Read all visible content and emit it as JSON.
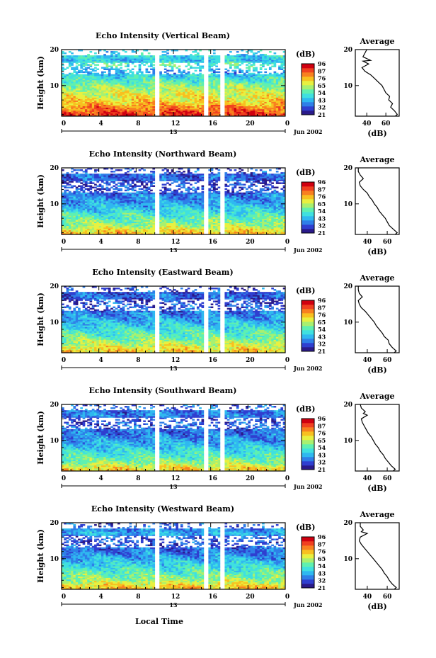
{
  "figure": {
    "local_time_label": "Local Time"
  },
  "colorbar": {
    "unit_label": "(dB)",
    "ticks": [
      "96",
      "87",
      "76",
      "65",
      "54",
      "43",
      "32",
      "21"
    ],
    "colors": [
      "#2a1a8a",
      "#2f3fd0",
      "#2f7fe8",
      "#2fb8f0",
      "#3fe0e0",
      "#5ff0b0",
      "#a8f070",
      "#e8f040",
      "#f8c020",
      "#f88020",
      "#f04020",
      "#d00010"
    ]
  },
  "chart_data": [
    {
      "type": "heatmap",
      "title": "Echo Intensity (Vertical Beam)",
      "ylabel": "Height (km)",
      "x_ticks": [
        "0",
        "4",
        "8",
        "12",
        "16",
        "20",
        "0"
      ],
      "y_ticks": [
        "20",
        "10"
      ],
      "x_range": [
        0,
        24
      ],
      "y_range": [
        1.5,
        20
      ],
      "date_label": "Jun 2002",
      "date_center_tick": "13",
      "data_gaps_hours": [
        [
          10.0,
          10.6
        ],
        [
          15.3,
          15.8
        ],
        [
          17.0,
          17.5
        ]
      ],
      "color_range_db": [
        21,
        96
      ],
      "intensity_profile_db": [
        [
          2,
          88
        ],
        [
          4,
          80
        ],
        [
          6,
          70
        ],
        [
          8,
          66
        ],
        [
          10,
          60
        ],
        [
          12,
          50
        ],
        [
          14,
          40
        ],
        [
          16,
          55
        ],
        [
          17,
          45
        ],
        [
          18,
          48
        ],
        [
          20,
          45
        ]
      ],
      "average": {
        "title": "Average",
        "xlabel": "(dB)",
        "x_ticks": [
          "40",
          "60"
        ],
        "y_ticks": [
          "20",
          "10"
        ],
        "x_range": [
          28,
          74
        ],
        "y_range": [
          1.5,
          20
        ],
        "profile": [
          [
            1.5,
            70
          ],
          [
            2,
            72
          ],
          [
            3,
            69
          ],
          [
            4,
            65
          ],
          [
            5,
            67
          ],
          [
            6,
            63
          ],
          [
            7,
            64
          ],
          [
            8,
            60
          ],
          [
            9,
            58
          ],
          [
            10,
            56
          ],
          [
            11,
            52
          ],
          [
            12,
            48
          ],
          [
            13,
            44
          ],
          [
            14,
            38
          ],
          [
            15,
            35
          ],
          [
            16,
            42
          ],
          [
            16.8,
            36
          ],
          [
            17,
            44
          ],
          [
            18,
            36
          ],
          [
            19,
            38
          ],
          [
            20,
            40
          ]
        ]
      }
    },
    {
      "type": "heatmap",
      "title": "Echo Intensity (Northward Beam)",
      "ylabel": "Height (km)",
      "x_ticks": [
        "0",
        "4",
        "8",
        "12",
        "16",
        "20",
        "0"
      ],
      "y_ticks": [
        "20",
        "10"
      ],
      "x_range": [
        0,
        24
      ],
      "y_range": [
        1.5,
        20
      ],
      "date_label": "Jun 2002",
      "date_center_tick": "13",
      "data_gaps_hours": [
        [
          10.0,
          10.6
        ],
        [
          15.3,
          15.8
        ],
        [
          17.0,
          17.5
        ]
      ],
      "color_range_db": [
        21,
        96
      ],
      "intensity_profile_db": [
        [
          2,
          74
        ],
        [
          4,
          62
        ],
        [
          6,
          55
        ],
        [
          8,
          48
        ],
        [
          10,
          42
        ],
        [
          12,
          38
        ],
        [
          14,
          32
        ],
        [
          16,
          30
        ],
        [
          17,
          35
        ],
        [
          18,
          34
        ],
        [
          20,
          30
        ]
      ],
      "average": {
        "title": "Average",
        "xlabel": "(dB)",
        "x_ticks": [
          "40",
          "60"
        ],
        "y_ticks": [
          "20",
          "10"
        ],
        "x_range": [
          28,
          72
        ],
        "y_range": [
          1.5,
          20
        ],
        "profile": [
          [
            1.5,
            68
          ],
          [
            2,
            70
          ],
          [
            3,
            66
          ],
          [
            4,
            62
          ],
          [
            5,
            60
          ],
          [
            6,
            58
          ],
          [
            7,
            55
          ],
          [
            8,
            52
          ],
          [
            9,
            50
          ],
          [
            10,
            47
          ],
          [
            11,
            45
          ],
          [
            12,
            42
          ],
          [
            13,
            40
          ],
          [
            14,
            36
          ],
          [
            15,
            33
          ],
          [
            16,
            32
          ],
          [
            17,
            36
          ],
          [
            18,
            33
          ],
          [
            19,
            31
          ],
          [
            20,
            31
          ]
        ]
      }
    },
    {
      "type": "heatmap",
      "title": "Echo Intensity (Eastward Beam)",
      "ylabel": "Height (km)",
      "x_ticks": [
        "0",
        "4",
        "8",
        "12",
        "16",
        "20",
        "0"
      ],
      "y_ticks": [
        "20",
        "10"
      ],
      "x_range": [
        0,
        24
      ],
      "y_range": [
        1.5,
        20
      ],
      "date_label": "Jun 2002",
      "date_center_tick": "13",
      "data_gaps_hours": [
        [
          10.0,
          10.6
        ],
        [
          15.3,
          15.8
        ],
        [
          17.0,
          17.5
        ]
      ],
      "color_range_db": [
        21,
        96
      ],
      "intensity_profile_db": [
        [
          2,
          72
        ],
        [
          4,
          64
        ],
        [
          6,
          56
        ],
        [
          8,
          50
        ],
        [
          10,
          44
        ],
        [
          12,
          38
        ],
        [
          14,
          33
        ],
        [
          16,
          30
        ],
        [
          17,
          35
        ],
        [
          18,
          33
        ],
        [
          20,
          30
        ]
      ],
      "average": {
        "title": "Average",
        "xlabel": "(dB)",
        "x_ticks": [
          "40",
          "60"
        ],
        "y_ticks": [
          "20",
          "10"
        ],
        "x_range": [
          28,
          72
        ],
        "y_range": [
          1.5,
          20
        ],
        "profile": [
          [
            1.5,
            67
          ],
          [
            2,
            69
          ],
          [
            3,
            65
          ],
          [
            4,
            62
          ],
          [
            5,
            61
          ],
          [
            6,
            57
          ],
          [
            7,
            55
          ],
          [
            8,
            52
          ],
          [
            9,
            49
          ],
          [
            10,
            47
          ],
          [
            11,
            44
          ],
          [
            12,
            41
          ],
          [
            13,
            38
          ],
          [
            14,
            34
          ],
          [
            15,
            32
          ],
          [
            16,
            31
          ],
          [
            17,
            35
          ],
          [
            18,
            32
          ],
          [
            19,
            31
          ],
          [
            20,
            31
          ]
        ]
      }
    },
    {
      "type": "heatmap",
      "title": "Echo Intensity (Southward Beam)",
      "ylabel": "Height (km)",
      "x_ticks": [
        "0",
        "4",
        "8",
        "12",
        "16",
        "20",
        "0"
      ],
      "y_ticks": [
        "20",
        "10"
      ],
      "x_range": [
        0,
        24
      ],
      "y_range": [
        1.5,
        20
      ],
      "date_label": "Jun 2002",
      "date_center_tick": "13",
      "data_gaps_hours": [
        [
          10.0,
          10.6
        ],
        [
          15.3,
          15.8
        ],
        [
          17.0,
          17.5
        ]
      ],
      "color_range_db": [
        21,
        96
      ],
      "intensity_profile_db": [
        [
          2,
          72
        ],
        [
          4,
          60
        ],
        [
          6,
          52
        ],
        [
          8,
          46
        ],
        [
          10,
          40
        ],
        [
          12,
          36
        ],
        [
          14,
          34
        ],
        [
          16,
          32
        ],
        [
          17,
          38
        ],
        [
          18,
          36
        ],
        [
          20,
          32
        ]
      ],
      "average": {
        "title": "Average",
        "xlabel": "(dB)",
        "x_ticks": [
          "40",
          "60"
        ],
        "y_ticks": [
          "20",
          "10"
        ],
        "x_range": [
          28,
          72
        ],
        "y_range": [
          1.5,
          20
        ],
        "profile": [
          [
            1.5,
            66
          ],
          [
            2,
            68
          ],
          [
            3,
            64
          ],
          [
            4,
            61
          ],
          [
            5,
            58
          ],
          [
            6,
            56
          ],
          [
            7,
            53
          ],
          [
            8,
            51
          ],
          [
            9,
            48
          ],
          [
            10,
            46
          ],
          [
            11,
            44
          ],
          [
            12,
            41
          ],
          [
            13,
            39
          ],
          [
            14,
            37
          ],
          [
            15,
            35
          ],
          [
            16,
            34
          ],
          [
            17,
            40
          ],
          [
            17.5,
            36
          ],
          [
            18,
            38
          ],
          [
            19,
            34
          ],
          [
            20,
            33
          ]
        ]
      }
    },
    {
      "type": "heatmap",
      "title": "Echo Intensity (Westward Beam)",
      "ylabel": "Height (km)",
      "x_ticks": [
        "0",
        "4",
        "8",
        "12",
        "16",
        "20",
        "0"
      ],
      "y_ticks": [
        "20",
        "10"
      ],
      "x_range": [
        0,
        24
      ],
      "y_range": [
        1.5,
        20
      ],
      "date_label": "Jun 2002",
      "date_center_tick": "13",
      "data_gaps_hours": [
        [
          10.0,
          10.6
        ],
        [
          15.3,
          15.8
        ],
        [
          17.0,
          17.5
        ]
      ],
      "color_range_db": [
        21,
        96
      ],
      "intensity_profile_db": [
        [
          2,
          74
        ],
        [
          4,
          62
        ],
        [
          6,
          55
        ],
        [
          8,
          48
        ],
        [
          10,
          42
        ],
        [
          12,
          36
        ],
        [
          14,
          32
        ],
        [
          16,
          34
        ],
        [
          17,
          44
        ],
        [
          18,
          38
        ],
        [
          20,
          32
        ]
      ],
      "average": {
        "title": "Average",
        "xlabel": "(dB)",
        "x_ticks": [
          "40",
          "60"
        ],
        "y_ticks": [
          "20",
          "10"
        ],
        "x_range": [
          28,
          72
        ],
        "y_range": [
          1.5,
          20
        ],
        "profile": [
          [
            1.5,
            67
          ],
          [
            2,
            69
          ],
          [
            3,
            65
          ],
          [
            4,
            62
          ],
          [
            5,
            60
          ],
          [
            6,
            57
          ],
          [
            7,
            55
          ],
          [
            8,
            52
          ],
          [
            9,
            49
          ],
          [
            10,
            46
          ],
          [
            11,
            43
          ],
          [
            12,
            40
          ],
          [
            13,
            37
          ],
          [
            14,
            34
          ],
          [
            15,
            32
          ],
          [
            16,
            33
          ],
          [
            17,
            40
          ],
          [
            17.5,
            34
          ],
          [
            18,
            36
          ],
          [
            19,
            33
          ],
          [
            20,
            33
          ]
        ]
      }
    }
  ]
}
